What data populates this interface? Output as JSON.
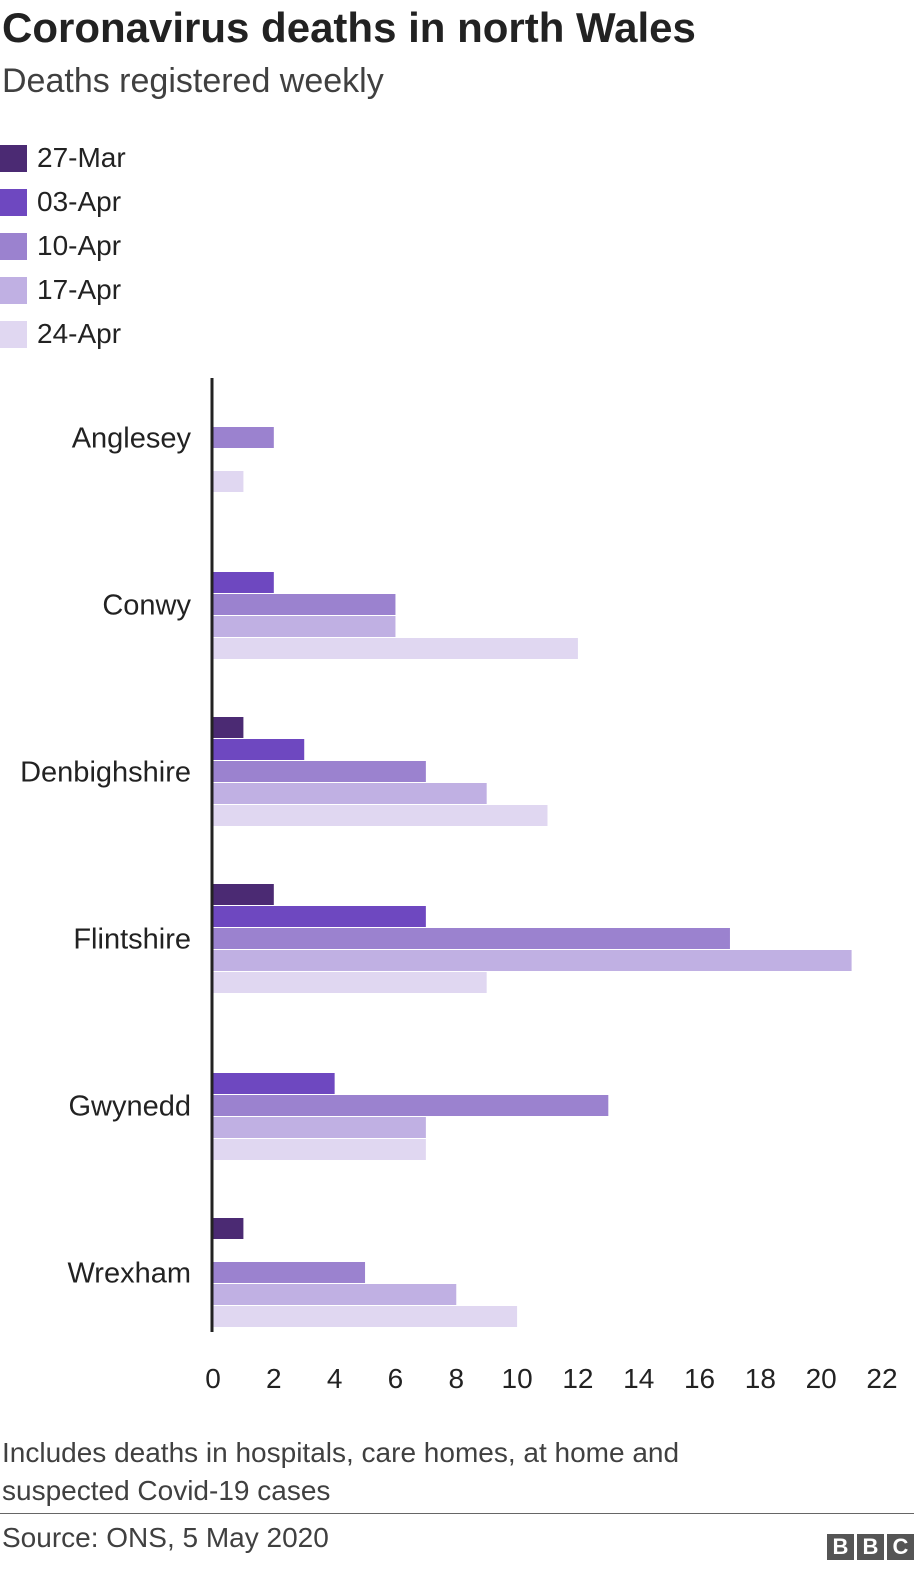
{
  "title": "Coronavirus deaths in north Wales",
  "subtitle": "Deaths registered weekly",
  "note": "Includes deaths in hospitals, care homes, at home and suspected Covid-19 cases",
  "source": "Source: ONS, 5 May 2020",
  "logo": "BBC",
  "chart_data": {
    "type": "bar",
    "orientation": "horizontal",
    "title": "Coronavirus deaths in north Wales",
    "subtitle": "Deaths registered weekly",
    "categories": [
      "Anglesey",
      "Conwy",
      "Denbighshire",
      "Flintshire",
      "Gwynedd",
      "Wrexham"
    ],
    "series": [
      {
        "name": "27-Mar",
        "color": "#4b2a73",
        "values": [
          0,
          0,
          1,
          2,
          0,
          1
        ]
      },
      {
        "name": "03-Apr",
        "color": "#6e48c0",
        "values": [
          0,
          2,
          3,
          7,
          4,
          0
        ]
      },
      {
        "name": "10-Apr",
        "color": "#9b82cf",
        "values": [
          2,
          6,
          7,
          17,
          13,
          5
        ]
      },
      {
        "name": "17-Apr",
        "color": "#c0b0e3",
        "values": [
          0,
          6,
          9,
          21,
          7,
          8
        ]
      },
      {
        "name": "24-Apr",
        "color": "#e0d7f1",
        "values": [
          1,
          12,
          11,
          9,
          7,
          10
        ]
      }
    ],
    "xlim": [
      0,
      22
    ],
    "xticks": [
      "0",
      "2",
      "4",
      "6",
      "8",
      "10",
      "12",
      "14",
      "16",
      "18",
      "20",
      "22"
    ],
    "grid": false,
    "legend": "top-left"
  }
}
